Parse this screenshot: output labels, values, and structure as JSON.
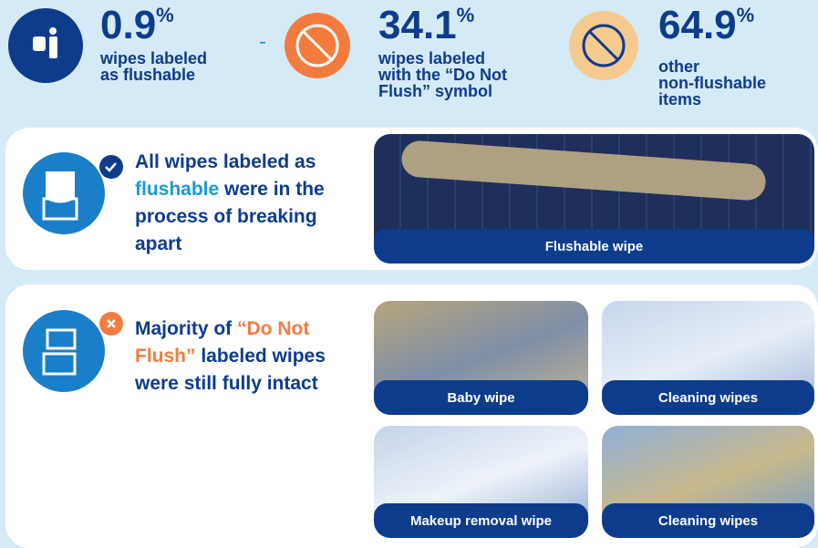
{
  "stats": [
    {
      "value": "0.9",
      "unit": "%",
      "label_lines": [
        "wipes labeled",
        "as flushable"
      ]
    },
    {
      "value": "34.1",
      "unit": "%",
      "label_lines": [
        "wipes labeled",
        "with the “Do Not",
        "Flush” symbol"
      ]
    },
    {
      "value": "64.9",
      "unit": "%",
      "label_lines": [
        "other",
        "non-flushable",
        "items"
      ]
    }
  ],
  "findings": [
    {
      "text_parts": [
        "All wipes labeled as ",
        "flushable",
        " were in the process of breaking apart"
      ],
      "photos": [
        "Flushable wipe"
      ]
    },
    {
      "text_parts": [
        "Majority of ",
        "“Do Not Flush”",
        " labeled wipes were still fully intact"
      ],
      "photos": [
        "Baby wipe",
        "Cleaning wipes",
        "Makeup removal wipe",
        "Cleaning wipes"
      ]
    }
  ]
}
